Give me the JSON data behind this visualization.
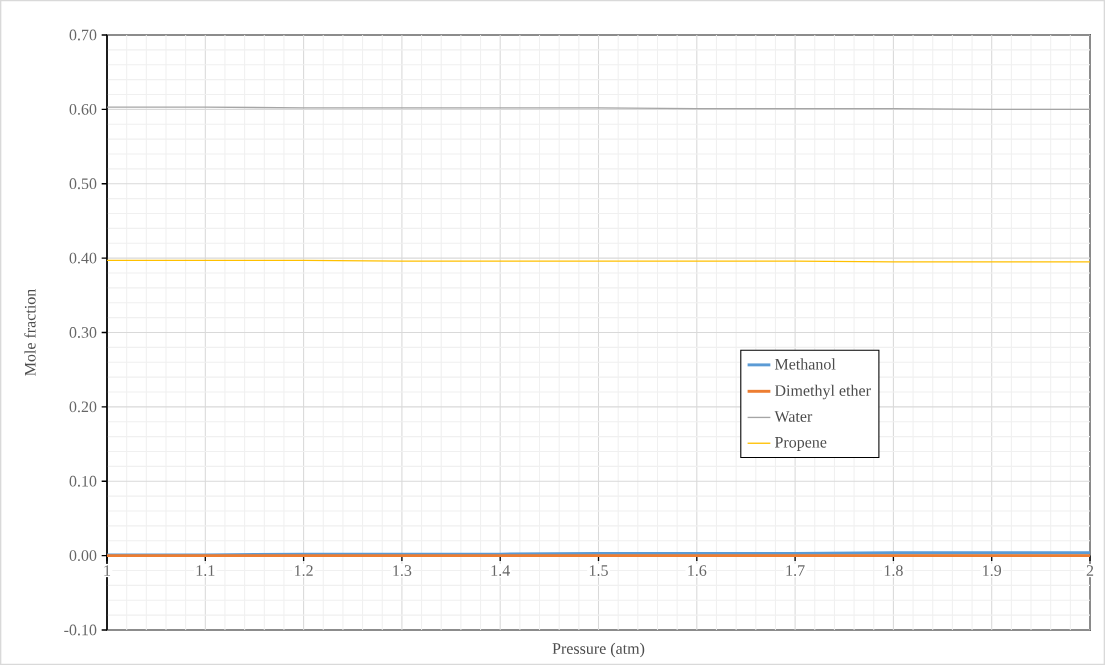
{
  "chart_data": {
    "type": "line",
    "xlabel": "Pressure (atm)",
    "ylabel": "Mole fraction",
    "x": [
      1,
      1.1,
      1.2,
      1.3,
      1.4,
      1.5,
      1.6,
      1.7,
      1.8,
      1.9,
      2
    ],
    "series": [
      {
        "name": "Methanol",
        "color": "#5b9bd5",
        "values": [
          0.001,
          0.001,
          0.002,
          0.002,
          0.002,
          0.003,
          0.003,
          0.003,
          0.004,
          0.004,
          0.004
        ]
      },
      {
        "name": "Dimethyl ether",
        "color": "#ed7d31",
        "values": [
          0,
          0,
          0,
          0,
          0,
          0,
          0,
          0,
          0,
          0,
          0
        ]
      },
      {
        "name": "Water",
        "color": "#a5a5a5",
        "values": [
          0.603,
          0.603,
          0.602,
          0.602,
          0.602,
          0.602,
          0.601,
          0.601,
          0.601,
          0.6,
          0.6
        ]
      },
      {
        "name": "Propene",
        "color": "#ffc000",
        "values": [
          0.397,
          0.397,
          0.397,
          0.396,
          0.396,
          0.396,
          0.396,
          0.396,
          0.395,
          0.395,
          0.395
        ]
      }
    ],
    "xlim": [
      1,
      2
    ],
    "ylim": [
      -0.1,
      0.7
    ],
    "xticks": [
      1,
      1.1,
      1.2,
      1.3,
      1.4,
      1.5,
      1.6,
      1.7,
      1.8,
      1.9,
      2
    ],
    "yticks": [
      {
        "value": -0.1,
        "label": "-0.10"
      },
      {
        "value": 0,
        "label": "0.00"
      },
      {
        "value": 0.1,
        "label": "0.10"
      },
      {
        "value": 0.2,
        "label": "0.20"
      },
      {
        "value": 0.3,
        "label": "0.30"
      },
      {
        "value": 0.4,
        "label": "0.40"
      },
      {
        "value": 0.5,
        "label": "0.50"
      },
      {
        "value": 0.6,
        "label": "0.60"
      },
      {
        "value": 0.7,
        "label": "0.70"
      }
    ],
    "grid": true,
    "legend": "center",
    "marker": "none",
    "line_style": "solid"
  }
}
